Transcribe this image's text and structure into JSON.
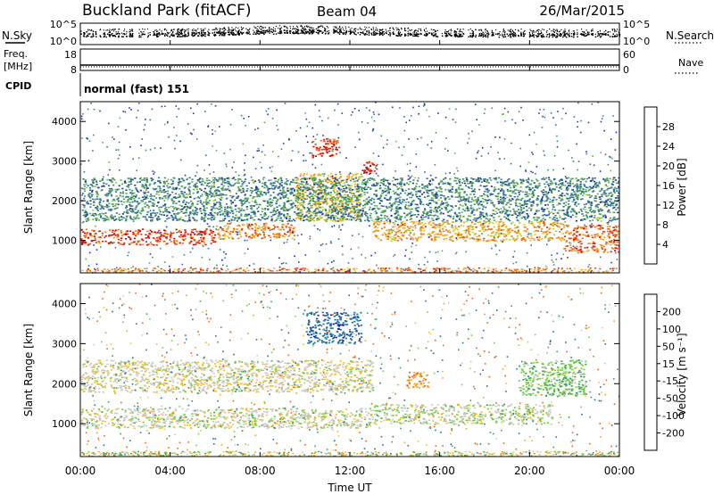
{
  "header": {
    "station": "Buckland Park (fitACF)",
    "beam": "Beam 04",
    "date": "26/Mar/2015"
  },
  "side_labels": {
    "nsky": "N.Sky",
    "nsearch": "N.Search",
    "freq": "Freq.",
    "freq_unit": "[MHz]",
    "nave": "Nave",
    "cpid": "CPID",
    "cpid_value": "normal (fast) 151"
  },
  "noise_panel": {
    "left_ticks": [
      "10^5",
      "10^0"
    ],
    "right_ticks": [
      "10^5",
      "10^0"
    ]
  },
  "freq_panel": {
    "left_ticks": [
      "18",
      "8"
    ],
    "right_ticks": [
      "60",
      "0"
    ]
  },
  "x_axis": {
    "label": "Time UT",
    "ticks": [
      "00:00",
      "04:00",
      "08:00",
      "12:00",
      "16:00",
      "20:00",
      "00:00"
    ]
  },
  "colors": {
    "power_scale": [
      "#1a1aff",
      "#1f3a9e",
      "#2f6fa0",
      "#3f8f6a",
      "#5fb04f",
      "#a7d43a",
      "#f0c020",
      "#f0a020",
      "#f07010",
      "#e83010",
      "#e00000"
    ],
    "velocity_scale": [
      "#e00000",
      "#f06010",
      "#f0a020",
      "#f0c030",
      "#c8c8c8",
      "#c8c8c8",
      "#70d040",
      "#3ca05c",
      "#1f6fa0",
      "#1a1aaa"
    ],
    "ground_scatter": "#a0a0a0"
  },
  "chart_data": [
    {
      "type": "heatmap",
      "title": "",
      "xlabel": "Time UT",
      "ylabel": "Slant Range [km]",
      "xlim": [
        0,
        24
      ],
      "ylim": [
        180,
        4500
      ],
      "yticks": [
        "1000",
        "2000",
        "3000",
        "4000"
      ],
      "colorbar": {
        "label": "Power [dB]",
        "ticks": [
          "4",
          "8",
          "12",
          "16",
          "20",
          "24",
          "28"
        ],
        "range": [
          0,
          30
        ]
      },
      "regions": [
        {
          "t0": 0.0,
          "t1": 6.0,
          "r0": 900,
          "r1": 1300,
          "value": 26
        },
        {
          "t0": 6.0,
          "t1": 9.5,
          "r0": 1050,
          "r1": 1450,
          "value": 22
        },
        {
          "t0": 9.5,
          "t1": 12.5,
          "r0": 1500,
          "r1": 2700,
          "value": 18
        },
        {
          "t0": 10.3,
          "t1": 11.5,
          "r0": 3100,
          "r1": 3600,
          "value": 27
        },
        {
          "t0": 12.5,
          "t1": 13.2,
          "r0": 2700,
          "r1": 3000,
          "value": 28
        },
        {
          "t0": 13.0,
          "t1": 21.5,
          "r0": 1000,
          "r1": 1500,
          "value": 20
        },
        {
          "t0": 21.5,
          "t1": 24.0,
          "r0": 700,
          "r1": 1400,
          "value": 24
        },
        {
          "t0": 0.0,
          "t1": 24.0,
          "r0": 1500,
          "r1": 2600,
          "value": 9
        }
      ]
    },
    {
      "type": "heatmap",
      "title": "",
      "xlabel": "Time UT",
      "ylabel": "Slant Range [km]",
      "xlim": [
        0,
        24
      ],
      "ylim": [
        180,
        4500
      ],
      "yticks": [
        "1000",
        "2000",
        "3000",
        "4000"
      ],
      "colorbar": {
        "label": "Velocity [m s⁻¹]",
        "ticks": [
          "-200",
          "-100",
          "-50",
          "-15",
          "15",
          "50",
          "100",
          "200"
        ],
        "range": [
          -250,
          250
        ]
      },
      "regions": [
        {
          "t0": 0.0,
          "t1": 13.0,
          "r0": 900,
          "r1": 1400,
          "value": 0
        },
        {
          "t0": 0.0,
          "t1": 13.0,
          "r0": 1800,
          "r1": 2600,
          "value": -5
        },
        {
          "t0": 10.0,
          "t1": 12.5,
          "r0": 3000,
          "r1": 3800,
          "value": 180
        },
        {
          "t0": 14.5,
          "t1": 15.5,
          "r0": 1900,
          "r1": 2300,
          "value": -90
        },
        {
          "t0": 13.0,
          "t1": 21.0,
          "r0": 1000,
          "r1": 1500,
          "value": 5
        },
        {
          "t0": 19.5,
          "t1": 22.5,
          "r0": 1700,
          "r1": 2600,
          "value": 40
        }
      ]
    }
  ]
}
